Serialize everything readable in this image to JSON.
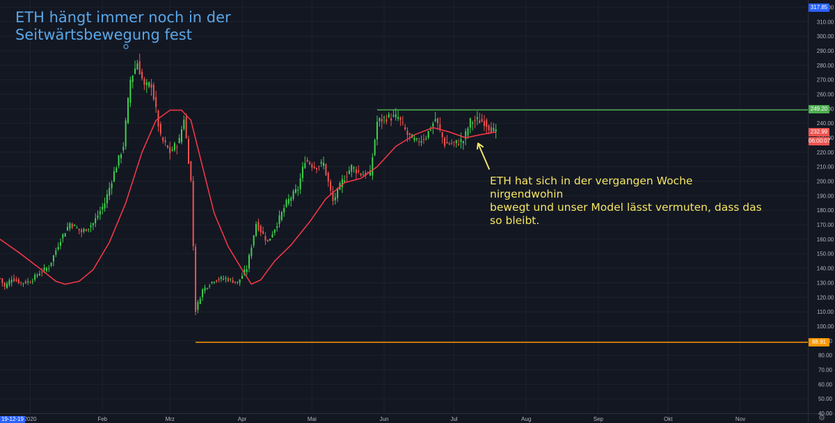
{
  "title_lines": [
    "ETH hängt immer noch in der",
    "Seitwärtsbewegung fest"
  ],
  "annotation_lines": [
    "ETH hat sich in der vergangen Woche nirgendwohin",
    "bewegt und unser Model lässt vermuten, dass das",
    "so bleibt."
  ],
  "date_badge": "19-12-19",
  "settings_icon": "gear-icon",
  "colors": {
    "background": "#131722",
    "grid": "#1e222d",
    "up": "#26a69a",
    "up_bright": "#3fd14f",
    "down": "#ef5350",
    "ma": "#f23645",
    "resistance": "#4caf50",
    "support": "#ff9800",
    "title": "#5aa7e8",
    "annotation": "#f5e663",
    "axis_text": "#b2b5be"
  },
  "chart_data": {
    "type": "candlestick",
    "x_axis_labels": [
      "2020",
      "Feb",
      "Mrz",
      "Apr",
      "Mai",
      "Jun",
      "Jul",
      "Aug",
      "Sep",
      "Okt",
      "Nov"
    ],
    "x_axis_dates": [
      "2020-01-01",
      "2020-02-01",
      "2020-03-01",
      "2020-04-01",
      "2020-05-01",
      "2020-06-01",
      "2020-07-01",
      "2020-08-01",
      "2020-09-01",
      "2020-10-01",
      "2020-11-01"
    ],
    "y_axis_ticks": [
      40,
      50,
      60,
      70,
      80,
      90,
      100,
      110,
      120,
      130,
      140,
      150,
      160,
      170,
      180,
      190,
      200,
      210,
      220,
      230,
      240,
      250,
      260,
      270,
      280,
      290,
      300,
      310,
      320
    ],
    "y_axis_tick_labels": [
      "40.00",
      "50.00",
      "60.00",
      "70.00",
      "80.00",
      "90.00",
      "100.00",
      "110.00",
      "120.00",
      "130.00",
      "140.00",
      "150.00",
      "160.00",
      "170.00",
      "180.00",
      "190.00",
      "200.00",
      "210.00",
      "220.00",
      "230.00",
      "240.00",
      "250.00",
      "260.00",
      "270.00",
      "280.00",
      "290.00",
      "300.00",
      "310.00",
      "320.00"
    ],
    "ylim": [
      40,
      325
    ],
    "x_range": [
      "2019-12-19",
      "2020-11-30"
    ],
    "price_labels": {
      "high": "317.85",
      "resistance": "249.20",
      "current": "232.99",
      "countdown": "06:00:07",
      "support": "88.91"
    },
    "price_levels": {
      "high": 317.85,
      "resistance": 249.2,
      "current": 232.99,
      "support": 88.91
    },
    "horizontal_lines": [
      {
        "value": 249.2,
        "start": "2020-05-29",
        "color": "#4caf50"
      },
      {
        "value": 88.91,
        "start": "2020-03-12",
        "color": "#ff9800"
      }
    ],
    "price_path": [
      [
        "2019-12-19",
        133
      ],
      [
        "2019-12-21",
        127
      ],
      [
        "2019-12-24",
        133
      ],
      [
        "2019-12-28",
        130
      ],
      [
        "2020-01-01",
        131
      ],
      [
        "2020-01-05",
        137
      ],
      [
        "2020-01-09",
        141
      ],
      [
        "2020-01-14",
        160
      ],
      [
        "2020-01-18",
        171
      ],
      [
        "2020-01-23",
        165
      ],
      [
        "2020-01-28",
        171
      ],
      [
        "2020-02-02",
        185
      ],
      [
        "2020-02-06",
        206
      ],
      [
        "2020-02-10",
        225
      ],
      [
        "2020-02-13",
        270
      ],
      [
        "2020-02-16",
        282
      ],
      [
        "2020-02-19",
        265
      ],
      [
        "2020-02-22",
        267
      ],
      [
        "2020-02-26",
        230
      ],
      [
        "2020-03-01",
        220
      ],
      [
        "2020-03-05",
        228
      ],
      [
        "2020-03-07",
        244
      ],
      [
        "2020-03-10",
        200
      ],
      [
        "2020-03-12",
        111
      ],
      [
        "2020-03-15",
        125
      ],
      [
        "2020-03-20",
        132
      ],
      [
        "2020-03-25",
        133
      ],
      [
        "2020-03-30",
        130
      ],
      [
        "2020-04-03",
        140
      ],
      [
        "2020-04-07",
        171
      ],
      [
        "2020-04-12",
        158
      ],
      [
        "2020-04-16",
        171
      ],
      [
        "2020-04-20",
        185
      ],
      [
        "2020-04-25",
        195
      ],
      [
        "2020-04-28",
        215
      ],
      [
        "2020-05-02",
        210
      ],
      [
        "2020-05-06",
        212
      ],
      [
        "2020-05-10",
        186
      ],
      [
        "2020-05-14",
        200
      ],
      [
        "2020-05-18",
        210
      ],
      [
        "2020-05-22",
        205
      ],
      [
        "2020-05-26",
        205
      ],
      [
        "2020-05-29",
        241
      ],
      [
        "2020-06-02",
        244
      ],
      [
        "2020-06-07",
        244
      ],
      [
        "2020-06-11",
        232
      ],
      [
        "2020-06-15",
        227
      ],
      [
        "2020-06-19",
        231
      ],
      [
        "2020-06-23",
        243
      ],
      [
        "2020-06-27",
        226
      ],
      [
        "2020-07-01",
        226
      ],
      [
        "2020-07-05",
        228
      ],
      [
        "2020-07-08",
        241
      ],
      [
        "2020-07-11",
        242
      ],
      [
        "2020-07-14",
        241
      ],
      [
        "2020-07-17",
        236
      ],
      [
        "2020-07-19",
        233
      ]
    ],
    "ma_path": [
      [
        "2019-12-19",
        160
      ],
      [
        "2019-12-27",
        151
      ],
      [
        "2020-01-05",
        140
      ],
      [
        "2020-01-12",
        131
      ],
      [
        "2020-01-16",
        129
      ],
      [
        "2020-01-22",
        131
      ],
      [
        "2020-01-28",
        139
      ],
      [
        "2020-02-04",
        158
      ],
      [
        "2020-02-11",
        185
      ],
      [
        "2020-02-18",
        220
      ],
      [
        "2020-02-24",
        242
      ],
      [
        "2020-03-01",
        249
      ],
      [
        "2020-03-06",
        249
      ],
      [
        "2020-03-10",
        242
      ],
      [
        "2020-03-15",
        210
      ],
      [
        "2020-03-20",
        178
      ],
      [
        "2020-03-26",
        155
      ],
      [
        "2020-04-01",
        139
      ],
      [
        "2020-04-05",
        129
      ],
      [
        "2020-04-09",
        132
      ],
      [
        "2020-04-15",
        145
      ],
      [
        "2020-04-22",
        156
      ],
      [
        "2020-04-30",
        172
      ],
      [
        "2020-05-07",
        188
      ],
      [
        "2020-05-15",
        199
      ],
      [
        "2020-05-22",
        202
      ],
      [
        "2020-05-29",
        210
      ],
      [
        "2020-06-06",
        224
      ],
      [
        "2020-06-14",
        232
      ],
      [
        "2020-06-22",
        237
      ],
      [
        "2020-06-29",
        234
      ],
      [
        "2020-07-06",
        230
      ],
      [
        "2020-07-12",
        232
      ],
      [
        "2020-07-19",
        234
      ]
    ]
  }
}
